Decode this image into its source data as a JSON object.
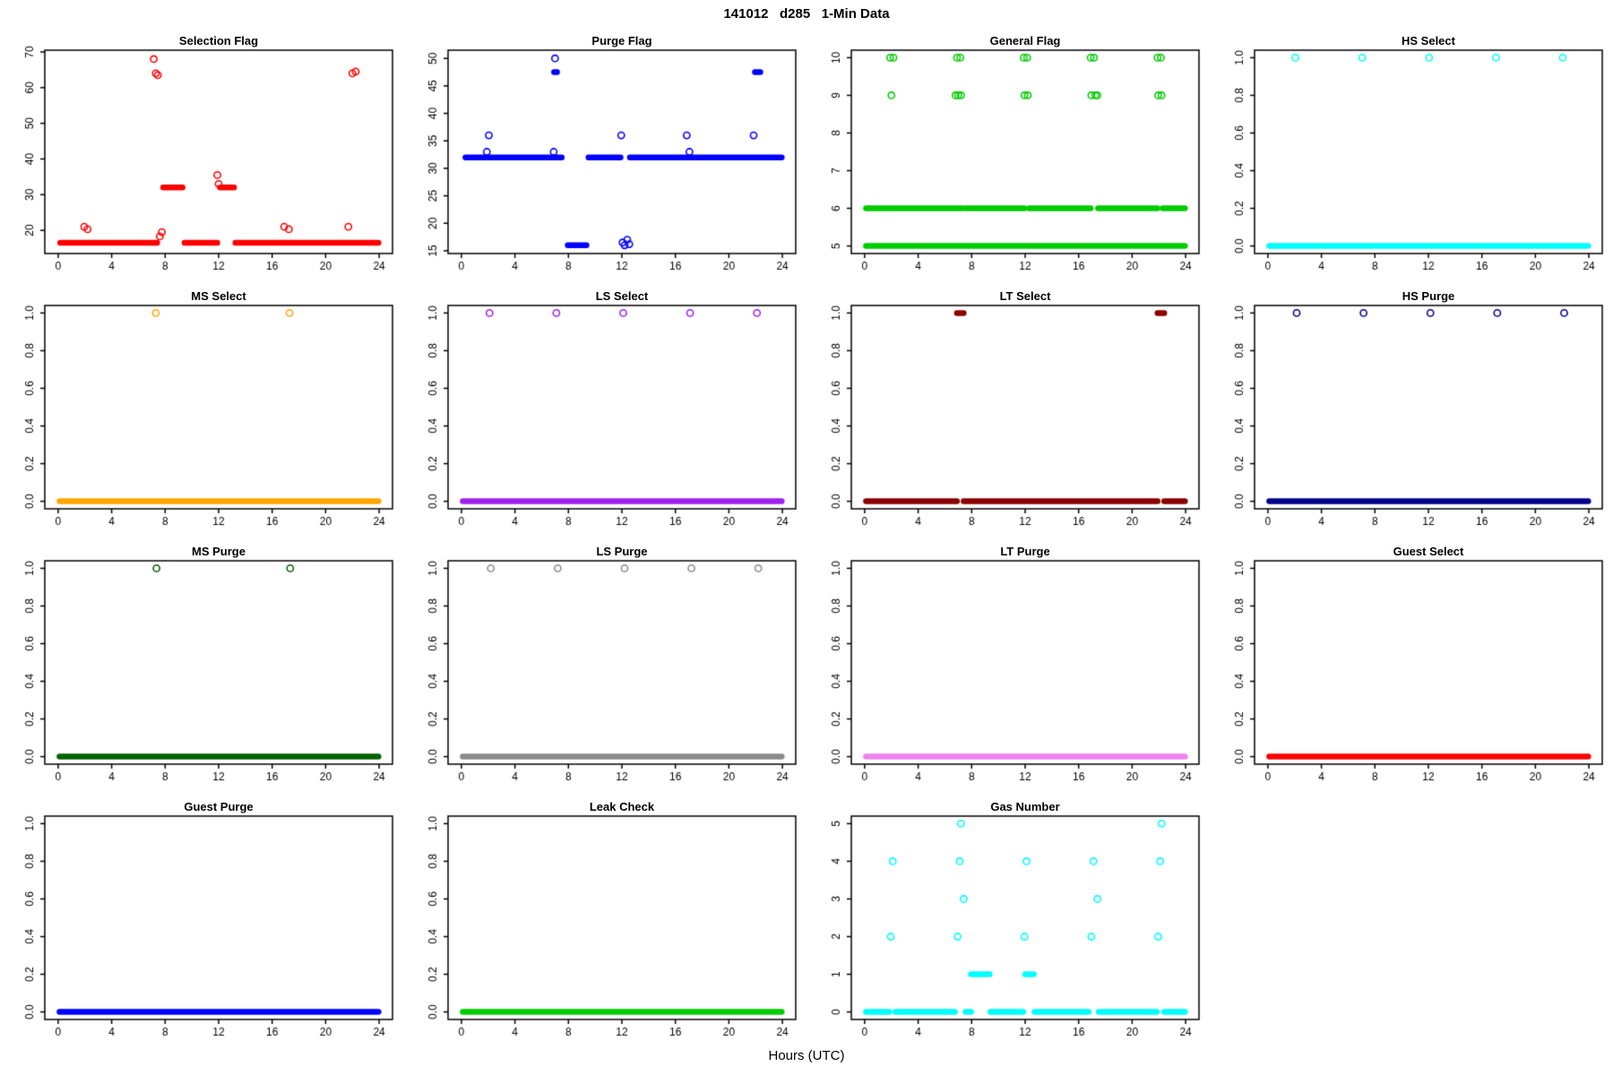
{
  "header": {
    "title": "141012   d285   1-Min Data"
  },
  "footer": {
    "xlabel": "Hours (UTC)"
  },
  "chart_data": [
    {
      "type": "scatter",
      "title": "Selection Flag",
      "color": "#FF0000",
      "xlim": [
        -1,
        25
      ],
      "xticks": [
        0,
        4,
        8,
        12,
        16,
        20,
        24
      ],
      "ylim": [
        13.5,
        70.5
      ],
      "yticks": [
        20,
        30,
        40,
        50,
        60,
        70
      ],
      "ytick_labels": [
        "20",
        "30",
        "40",
        "50",
        "60",
        "70"
      ],
      "runs": [
        [
          0.15,
          7.4,
          16.5
        ],
        [
          9.45,
          11.9,
          16.5
        ],
        [
          13.25,
          23.95,
          16.5
        ],
        [
          7.85,
          9.3,
          32
        ],
        [
          12.1,
          13.15,
          32
        ]
      ],
      "points": [
        [
          1.95,
          21
        ],
        [
          2.2,
          20.3
        ],
        [
          7.15,
          68
        ],
        [
          7.3,
          64
        ],
        [
          7.45,
          63.5
        ],
        [
          7.6,
          18.3
        ],
        [
          7.75,
          19.5
        ],
        [
          11.9,
          35.5
        ],
        [
          12.0,
          33
        ],
        [
          16.9,
          21
        ],
        [
          17.25,
          20.3
        ],
        [
          21.7,
          21
        ],
        [
          22.0,
          64
        ],
        [
          22.25,
          64.5
        ]
      ]
    },
    {
      "type": "scatter",
      "title": "Purge Flag",
      "color": "#0000FF",
      "xlim": [
        -1,
        25
      ],
      "xticks": [
        0,
        4,
        8,
        12,
        16,
        20,
        24
      ],
      "ylim": [
        14.5,
        51.5
      ],
      "yticks": [
        15,
        20,
        25,
        30,
        35,
        40,
        45,
        50
      ],
      "ytick_labels": [
        "15",
        "20",
        "25",
        "30",
        "35",
        "40",
        "45",
        "50"
      ],
      "runs": [
        [
          0.3,
          7.5,
          32
        ],
        [
          9.5,
          11.9,
          32
        ],
        [
          12.6,
          23.95,
          32
        ],
        [
          7.95,
          9.35,
          16
        ],
        [
          6.93,
          7.15,
          47.5
        ],
        [
          21.95,
          22.35,
          47.5
        ]
      ],
      "points": [
        [
          1.9,
          33
        ],
        [
          2.05,
          36
        ],
        [
          6.9,
          33
        ],
        [
          7.0,
          50
        ],
        [
          11.95,
          36
        ],
        [
          12.05,
          16.5
        ],
        [
          12.2,
          16
        ],
        [
          12.4,
          17
        ],
        [
          12.55,
          16.2
        ],
        [
          16.85,
          36
        ],
        [
          17.05,
          33
        ],
        [
          21.85,
          36
        ]
      ]
    },
    {
      "type": "scatter",
      "title": "General Flag",
      "color": "#00CC00",
      "xlim": [
        -1,
        25
      ],
      "xticks": [
        0,
        4,
        8,
        12,
        16,
        20,
        24
      ],
      "ylim": [
        4.8,
        10.2
      ],
      "yticks": [
        5,
        6,
        7,
        8,
        9,
        10
      ],
      "ytick_labels": [
        "5",
        "6",
        "7",
        "8",
        "9",
        "10"
      ],
      "runs": [
        [
          0.1,
          23.95,
          5
        ],
        [
          0.1,
          1.95,
          6
        ],
        [
          2.1,
          7.35,
          6
        ],
        [
          7.6,
          11.95,
          6
        ],
        [
          12.3,
          16.9,
          6
        ],
        [
          17.45,
          21.9,
          6
        ],
        [
          22.3,
          23.95,
          6
        ]
      ],
      "points": [
        [
          1.9,
          10
        ],
        [
          2.15,
          10
        ],
        [
          6.9,
          10
        ],
        [
          7.15,
          10
        ],
        [
          11.9,
          10
        ],
        [
          12.15,
          10
        ],
        [
          16.9,
          10
        ],
        [
          17.15,
          10
        ],
        [
          21.9,
          10
        ],
        [
          22.15,
          10
        ],
        [
          2.0,
          9
        ],
        [
          6.8,
          9
        ],
        [
          7.0,
          9
        ],
        [
          7.2,
          9
        ],
        [
          11.95,
          9
        ],
        [
          12.2,
          9
        ],
        [
          16.95,
          9
        ],
        [
          17.25,
          9
        ],
        [
          17.4,
          9
        ],
        [
          21.95,
          9
        ],
        [
          22.2,
          9
        ]
      ]
    },
    {
      "type": "scatter",
      "title": "HS Select",
      "color": "#00FFFF",
      "xlim": [
        -1,
        25
      ],
      "xticks": [
        0,
        4,
        8,
        12,
        16,
        20,
        24
      ],
      "ylim": [
        -0.04,
        1.04
      ],
      "yticks": [
        0,
        0.2,
        0.4,
        0.6,
        0.8,
        1.0
      ],
      "ytick_labels": [
        "0.0",
        "0.2",
        "0.4",
        "0.6",
        "0.8",
        "1.0"
      ],
      "runs": [
        [
          0.1,
          23.95,
          0
        ]
      ],
      "points": [
        [
          2.05,
          1
        ],
        [
          7.05,
          1
        ],
        [
          12.05,
          1
        ],
        [
          17.05,
          1
        ],
        [
          22.05,
          1
        ]
      ]
    },
    {
      "type": "scatter",
      "title": "MS Select",
      "color": "#FFA500",
      "xlim": [
        -1,
        25
      ],
      "xticks": [
        0,
        4,
        8,
        12,
        16,
        20,
        24
      ],
      "ylim": [
        -0.04,
        1.04
      ],
      "yticks": [
        0,
        0.2,
        0.4,
        0.6,
        0.8,
        1.0
      ],
      "ytick_labels": [
        "0.0",
        "0.2",
        "0.4",
        "0.6",
        "0.8",
        "1.0"
      ],
      "runs": [
        [
          0.1,
          23.95,
          0
        ]
      ],
      "points": [
        [
          7.3,
          1
        ],
        [
          17.3,
          1
        ]
      ]
    },
    {
      "type": "scatter",
      "title": "LS Select",
      "color": "#A020F0",
      "xlim": [
        -1,
        25
      ],
      "xticks": [
        0,
        4,
        8,
        12,
        16,
        20,
        24
      ],
      "ylim": [
        -0.04,
        1.04
      ],
      "yticks": [
        0,
        0.2,
        0.4,
        0.6,
        0.8,
        1.0
      ],
      "ytick_labels": [
        "0.0",
        "0.2",
        "0.4",
        "0.6",
        "0.8",
        "1.0"
      ],
      "runs": [
        [
          0.1,
          23.95,
          0
        ]
      ],
      "points": [
        [
          2.1,
          1
        ],
        [
          7.1,
          1
        ],
        [
          12.1,
          1
        ],
        [
          17.1,
          1
        ],
        [
          22.1,
          1
        ]
      ]
    },
    {
      "type": "scatter",
      "title": "LT Select",
      "color": "#8B0000",
      "xlim": [
        -1,
        25
      ],
      "xticks": [
        0,
        4,
        8,
        12,
        16,
        20,
        24
      ],
      "ylim": [
        -0.04,
        1.04
      ],
      "yticks": [
        0,
        0.2,
        0.4,
        0.6,
        0.8,
        1.0
      ],
      "ytick_labels": [
        "0.0",
        "0.2",
        "0.4",
        "0.6",
        "0.8",
        "1.0"
      ],
      "runs": [
        [
          0.1,
          6.9,
          0
        ],
        [
          7.4,
          21.9,
          0
        ],
        [
          22.4,
          23.95,
          0
        ],
        [
          6.9,
          7.4,
          1
        ],
        [
          21.9,
          22.4,
          1
        ]
      ],
      "points": []
    },
    {
      "type": "scatter",
      "title": "HS Purge",
      "color": "#00008B",
      "xlim": [
        -1,
        25
      ],
      "xticks": [
        0,
        4,
        8,
        12,
        16,
        20,
        24
      ],
      "ylim": [
        -0.04,
        1.04
      ],
      "yticks": [
        0,
        0.2,
        0.4,
        0.6,
        0.8,
        1.0
      ],
      "ytick_labels": [
        "0.0",
        "0.2",
        "0.4",
        "0.6",
        "0.8",
        "1.0"
      ],
      "runs": [
        [
          0.1,
          23.95,
          0
        ]
      ],
      "points": [
        [
          2.15,
          1
        ],
        [
          7.15,
          1
        ],
        [
          12.15,
          1
        ],
        [
          17.15,
          1
        ],
        [
          22.15,
          1
        ]
      ]
    },
    {
      "type": "scatter",
      "title": "MS Purge",
      "color": "#006400",
      "xlim": [
        -1,
        25
      ],
      "xticks": [
        0,
        4,
        8,
        12,
        16,
        20,
        24
      ],
      "ylim": [
        -0.04,
        1.04
      ],
      "yticks": [
        0,
        0.2,
        0.4,
        0.6,
        0.8,
        1.0
      ],
      "ytick_labels": [
        "0.0",
        "0.2",
        "0.4",
        "0.6",
        "0.8",
        "1.0"
      ],
      "runs": [
        [
          0.1,
          23.95,
          0
        ]
      ],
      "points": [
        [
          7.35,
          1
        ],
        [
          17.35,
          1
        ]
      ]
    },
    {
      "type": "scatter",
      "title": "LS Purge",
      "color": "#8B8B8B",
      "xlim": [
        -1,
        25
      ],
      "xticks": [
        0,
        4,
        8,
        12,
        16,
        20,
        24
      ],
      "ylim": [
        -0.04,
        1.04
      ],
      "yticks": [
        0,
        0.2,
        0.4,
        0.6,
        0.8,
        1.0
      ],
      "ytick_labels": [
        "0.0",
        "0.2",
        "0.4",
        "0.6",
        "0.8",
        "1.0"
      ],
      "runs": [
        [
          0.1,
          23.95,
          0
        ]
      ],
      "points": [
        [
          2.2,
          1
        ],
        [
          7.2,
          1
        ],
        [
          12.2,
          1
        ],
        [
          17.2,
          1
        ],
        [
          22.2,
          1
        ]
      ]
    },
    {
      "type": "scatter",
      "title": "LT Purge",
      "color": "#EE82EE",
      "xlim": [
        -1,
        25
      ],
      "xticks": [
        0,
        4,
        8,
        12,
        16,
        20,
        24
      ],
      "ylim": [
        -0.04,
        1.04
      ],
      "yticks": [
        0,
        0.2,
        0.4,
        0.6,
        0.8,
        1.0
      ],
      "ytick_labels": [
        "0.0",
        "0.2",
        "0.4",
        "0.6",
        "0.8",
        "1.0"
      ],
      "runs": [
        [
          0.1,
          23.95,
          0
        ]
      ],
      "points": []
    },
    {
      "type": "scatter",
      "title": "Guest Select",
      "color": "#FF0000",
      "xlim": [
        -1,
        25
      ],
      "xticks": [
        0,
        4,
        8,
        12,
        16,
        20,
        24
      ],
      "ylim": [
        -0.04,
        1.04
      ],
      "yticks": [
        0,
        0.2,
        0.4,
        0.6,
        0.8,
        1.0
      ],
      "ytick_labels": [
        "0.0",
        "0.2",
        "0.4",
        "0.6",
        "0.8",
        "1.0"
      ],
      "runs": [
        [
          0.1,
          23.95,
          0
        ]
      ],
      "points": []
    },
    {
      "type": "scatter",
      "title": "Guest Purge",
      "color": "#0000FF",
      "xlim": [
        -1,
        25
      ],
      "xticks": [
        0,
        4,
        8,
        12,
        16,
        20,
        24
      ],
      "ylim": [
        -0.04,
        1.04
      ],
      "yticks": [
        0,
        0.2,
        0.4,
        0.6,
        0.8,
        1.0
      ],
      "ytick_labels": [
        "0.0",
        "0.2",
        "0.4",
        "0.6",
        "0.8",
        "1.0"
      ],
      "runs": [
        [
          0.1,
          23.95,
          0
        ]
      ],
      "points": []
    },
    {
      "type": "scatter",
      "title": "Leak Check",
      "color": "#00CC00",
      "xlim": [
        -1,
        25
      ],
      "xticks": [
        0,
        4,
        8,
        12,
        16,
        20,
        24
      ],
      "ylim": [
        -0.04,
        1.04
      ],
      "yticks": [
        0,
        0.2,
        0.4,
        0.6,
        0.8,
        1.0
      ],
      "ytick_labels": [
        "0.0",
        "0.2",
        "0.4",
        "0.6",
        "0.8",
        "1.0"
      ],
      "runs": [
        [
          0.1,
          23.95,
          0
        ]
      ],
      "points": []
    },
    {
      "type": "scatter",
      "title": "Gas Number",
      "color": "#00FFFF",
      "xlim": [
        -1,
        25
      ],
      "xticks": [
        0,
        4,
        8,
        12,
        16,
        20,
        24
      ],
      "ylim": [
        -0.2,
        5.2
      ],
      "yticks": [
        0,
        1,
        2,
        3,
        4,
        5
      ],
      "ytick_labels": [
        "0",
        "1",
        "2",
        "3",
        "4",
        "5"
      ],
      "runs": [
        [
          0.1,
          1.85,
          0
        ],
        [
          2.3,
          6.75,
          0
        ],
        [
          7.55,
          7.95,
          0
        ],
        [
          9.4,
          11.85,
          0
        ],
        [
          12.7,
          16.75,
          0
        ],
        [
          17.5,
          21.85,
          0
        ],
        [
          22.4,
          23.95,
          0
        ],
        [
          7.95,
          9.35,
          1
        ],
        [
          12.0,
          12.65,
          1
        ]
      ],
      "points": [
        [
          1.95,
          2
        ],
        [
          2.1,
          4
        ],
        [
          6.95,
          2
        ],
        [
          7.1,
          4
        ],
        [
          7.2,
          5
        ],
        [
          7.4,
          3
        ],
        [
          11.95,
          2
        ],
        [
          12.1,
          4
        ],
        [
          16.95,
          2
        ],
        [
          17.1,
          4
        ],
        [
          17.4,
          3
        ],
        [
          21.95,
          2
        ],
        [
          22.1,
          4
        ],
        [
          22.2,
          5
        ]
      ]
    }
  ]
}
